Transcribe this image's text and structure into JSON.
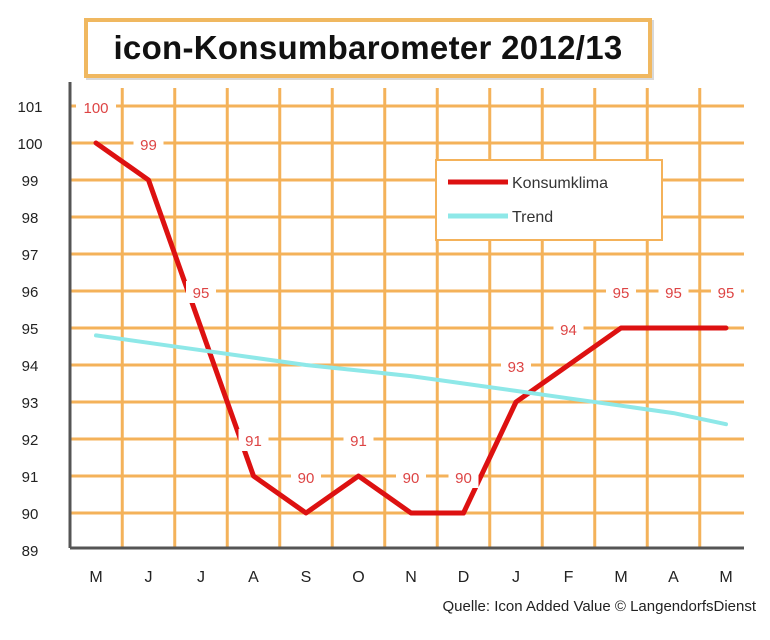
{
  "chart_data": {
    "type": "line",
    "title": "icon-Konsumbarometer 2012/13",
    "categories": [
      "M",
      "J",
      "J",
      "A",
      "S",
      "O",
      "N",
      "D",
      "J",
      "F",
      "M",
      "A",
      "M"
    ],
    "ylim": [
      89,
      101
    ],
    "yticks": [
      "89",
      "90",
      "91",
      "92",
      "93",
      "94",
      "95",
      "96",
      "97",
      "98",
      "99",
      "100",
      "101"
    ],
    "grid": true,
    "legend_position": "top-right",
    "series": [
      {
        "name": "Konsumklima",
        "color": "#dd1111",
        "values": [
          100,
          99,
          95,
          91,
          90,
          91,
          90,
          90,
          93,
          94,
          95,
          95,
          95
        ],
        "labels": [
          "100",
          "99",
          "95",
          "91",
          "90",
          "91",
          "90",
          "90",
          "93",
          "94",
          "95",
          "95",
          "95"
        ]
      },
      {
        "name": "Trend",
        "color": "#8ee8e8",
        "values": [
          94.8,
          94.6,
          94.4,
          94.2,
          94.0,
          93.85,
          93.7,
          93.5,
          93.3,
          93.1,
          92.9,
          92.7,
          92.4
        ]
      }
    ],
    "source": "Quelle: Icon Added Value © LangendorfsDienst"
  },
  "colors": {
    "grid": "#f4b25a",
    "frame": "#f0b860",
    "axis": "#555555",
    "data_label": "#dd4444"
  }
}
